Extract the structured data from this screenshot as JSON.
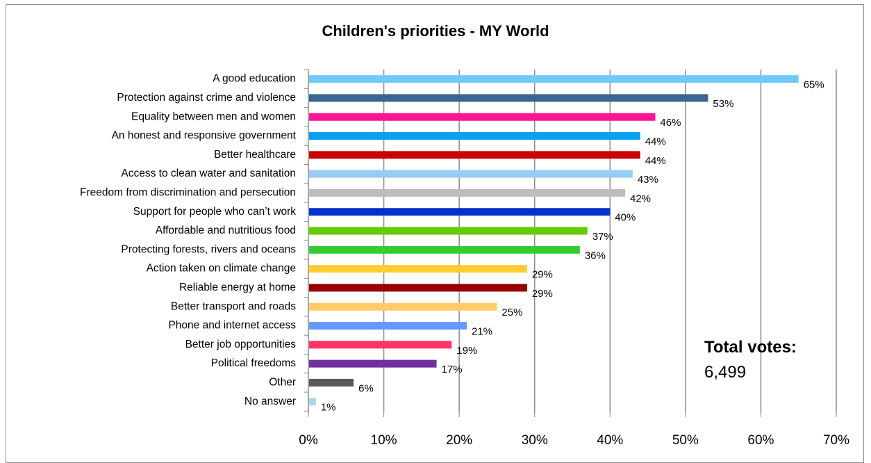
{
  "chart_data": {
    "type": "bar",
    "orientation": "horizontal",
    "title": "Children's priorities - MY World",
    "categories": [
      "A good education",
      "Protection against crime and violence",
      "Equality between men and women",
      "An honest and responsive government",
      "Better healthcare",
      "Access to clean water and sanitation",
      "Freedom from discrimination and persecution",
      "Support for people who can’t work",
      "Affordable and nutritious food",
      "Protecting forests, rivers and oceans",
      "Action taken on climate change",
      "Reliable energy at home",
      "Better transport and roads",
      "Phone and internet access",
      "Better job opportunities",
      "Political freedoms",
      "Other",
      "No answer"
    ],
    "values": [
      65,
      53,
      46,
      44,
      44,
      43,
      42,
      40,
      37,
      36,
      29,
      29,
      25,
      21,
      19,
      17,
      6,
      1
    ],
    "value_labels": [
      "65%",
      "53%",
      "46%",
      "44%",
      "44%",
      "43%",
      "42%",
      "40%",
      "37%",
      "36%",
      "29%",
      "29%",
      "25%",
      "21%",
      "19%",
      "17%",
      "6%",
      "1%"
    ],
    "colors": [
      "#6ecbf7",
      "#3a6590",
      "#ff1493",
      "#0aa0ef",
      "#cc0000",
      "#99ccf5",
      "#bdbdbd",
      "#0033cc",
      "#66cc00",
      "#33cc33",
      "#ffcc33",
      "#990000",
      "#ffcc66",
      "#6699ff",
      "#ff3366",
      "#7030a0",
      "#595959",
      "#add8e6"
    ],
    "xlim": [
      0,
      70
    ],
    "x_ticks": [
      0,
      10,
      20,
      30,
      40,
      50,
      60,
      70
    ],
    "x_tick_labels": [
      "0%",
      "10%",
      "20%",
      "30%",
      "40%",
      "50%",
      "60%",
      "70%"
    ],
    "grid": true,
    "xlabel": "",
    "ylabel": ""
  },
  "annotation": {
    "total_title": "Total votes:",
    "total_value": "6,499"
  }
}
